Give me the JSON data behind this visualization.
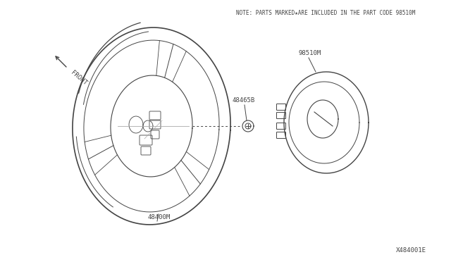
{
  "bg_color": "#ffffff",
  "line_color": "#444444",
  "note_text": "NOTE: PARTS MARKED★ARE INCLUDED IN THE PART CODE 98510M",
  "label_48400M": "48400M",
  "label_48465B": "48465B",
  "label_98510M": "98510M",
  "label_front": "FRONT",
  "diagram_id": "X484001E",
  "font_size_note": 5.5,
  "font_size_labels": 6.5,
  "font_size_id": 6.5
}
